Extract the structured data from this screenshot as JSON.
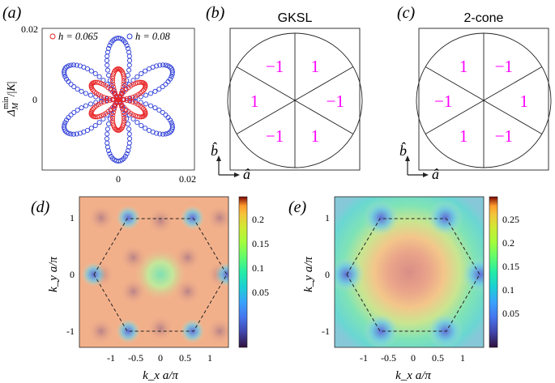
{
  "panel_labels": [
    "(a)",
    "(b)",
    "(c)",
    "(d)",
    "(e)"
  ],
  "panel_a": {
    "ylabel": "Δ_M^min/|K|",
    "legend": [
      "h = 0.065",
      "h = 0.08"
    ],
    "ticks": {
      "x": [
        "0",
        "0.02"
      ],
      "y": [
        "0",
        "0.02"
      ]
    },
    "colors": {
      "h0065": "#e8282a",
      "h008": "#2b3bd6"
    }
  },
  "panel_b": {
    "title": "GKSL",
    "sector_values": [
      "1",
      "−1",
      "1",
      "−1",
      "1",
      "−1"
    ],
    "axis_a": "â",
    "axis_b": "b̂"
  },
  "panel_c": {
    "title": "2-cone",
    "sector_values": [
      "−1",
      "1",
      "−1",
      "1",
      "−1",
      "1"
    ],
    "axis_a": "â",
    "axis_b": "b̂"
  },
  "panel_d": {
    "xlabel": "k_x a/π",
    "ylabel": "k_y a/π",
    "x_ticks": [
      "-1",
      "-0.5",
      "0",
      "0.5",
      "1"
    ],
    "y_ticks": [
      "1",
      "0",
      "-1"
    ],
    "colorbar_ticks": [
      "0.2",
      "0.15",
      "0.1",
      "0.05"
    ]
  },
  "panel_e": {
    "xlabel": "k_x a/π",
    "ylabel": "k_y a/π",
    "x_ticks": [
      "-1",
      "-0.5",
      "0",
      "0.5",
      "1"
    ],
    "y_ticks": [
      "1",
      "0",
      "-1"
    ],
    "colorbar_ticks": [
      "0.25",
      "0.2",
      "0.15",
      "0.1",
      "0.05"
    ]
  },
  "colors": {
    "magenta": "#ff00ff",
    "axis": "#222222"
  }
}
